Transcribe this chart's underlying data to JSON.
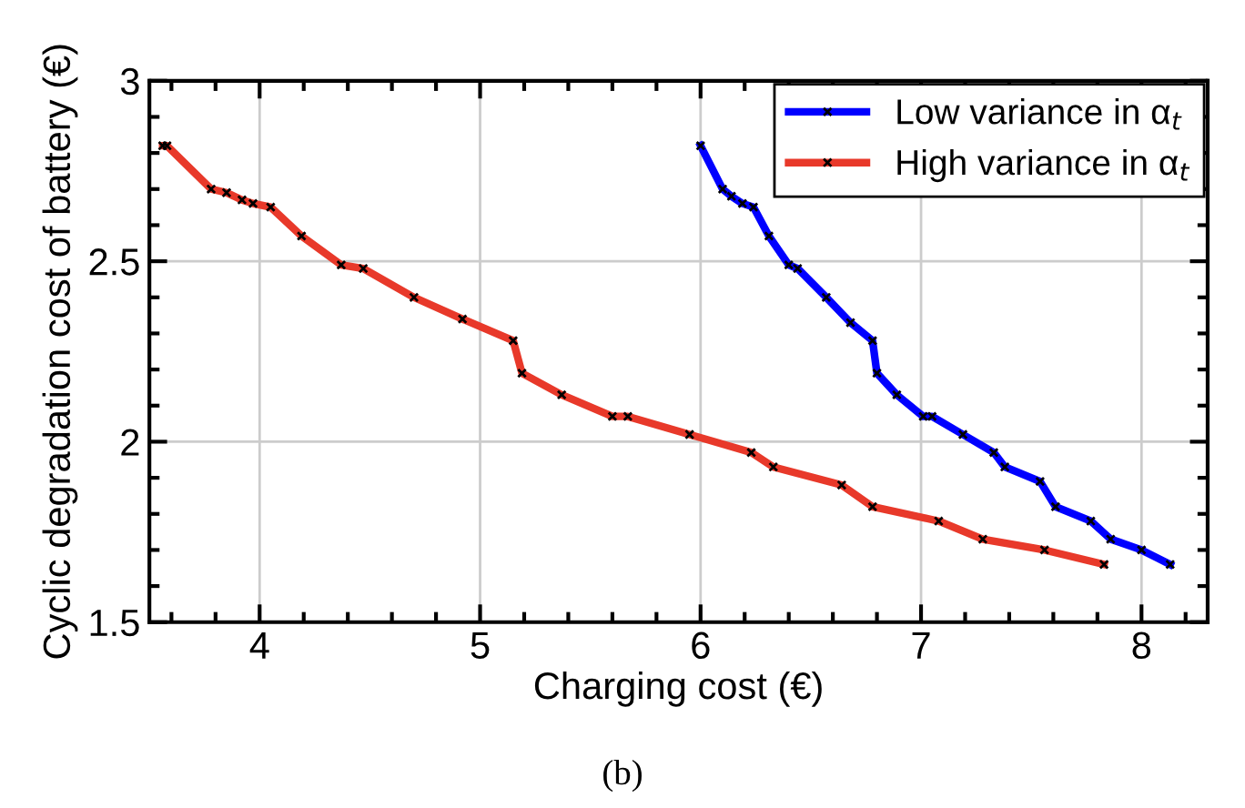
{
  "chart_data": {
    "type": "line",
    "xlabel": "Charging cost (€)",
    "ylabel": "Cyclic degradation cost of battery (€)",
    "annotations": [
      "(b)"
    ],
    "xlim": [
      3.5,
      8.3
    ],
    "ylim": [
      1.5,
      3
    ],
    "xticks": [
      4,
      5,
      6,
      7,
      8
    ],
    "yticks": [
      1.5,
      2,
      2.5,
      3
    ],
    "grid": true,
    "legend": "top right",
    "marker": "cross",
    "line_style": "solid",
    "series": [
      {
        "name": "Low variance in α$_{t}$",
        "color": "#0000ff",
        "x": [
          6.0,
          6.1,
          6.14,
          6.19,
          6.24,
          6.31,
          6.4,
          6.44,
          6.57,
          6.68,
          6.78,
          6.8,
          6.89,
          7.01,
          7.05,
          7.19,
          7.33,
          7.38,
          7.54,
          7.61,
          7.77,
          7.86,
          8.0,
          8.13
        ],
        "values": [
          2.82,
          2.7,
          2.68,
          2.66,
          2.65,
          2.57,
          2.49,
          2.48,
          2.4,
          2.33,
          2.28,
          2.19,
          2.13,
          2.07,
          2.07,
          2.02,
          1.97,
          1.93,
          1.89,
          1.82,
          1.78,
          1.73,
          1.7,
          1.66
        ]
      },
      {
        "name": "High variance in α$_{t}$",
        "color": "#e8392a",
        "x": [
          3.56,
          3.58,
          3.78,
          3.85,
          3.92,
          3.97,
          4.05,
          4.19,
          4.37,
          4.47,
          4.7,
          4.92,
          5.15,
          5.19,
          5.37,
          5.6,
          5.67,
          5.95,
          6.23,
          6.33,
          6.64,
          6.78,
          7.08,
          7.28,
          7.56,
          7.83
        ],
        "values": [
          2.82,
          2.82,
          2.7,
          2.69,
          2.67,
          2.66,
          2.65,
          2.57,
          2.49,
          2.48,
          2.4,
          2.34,
          2.28,
          2.19,
          2.13,
          2.07,
          2.07,
          2.02,
          1.97,
          1.93,
          1.88,
          1.82,
          1.78,
          1.73,
          1.7,
          1.66
        ]
      }
    ]
  }
}
